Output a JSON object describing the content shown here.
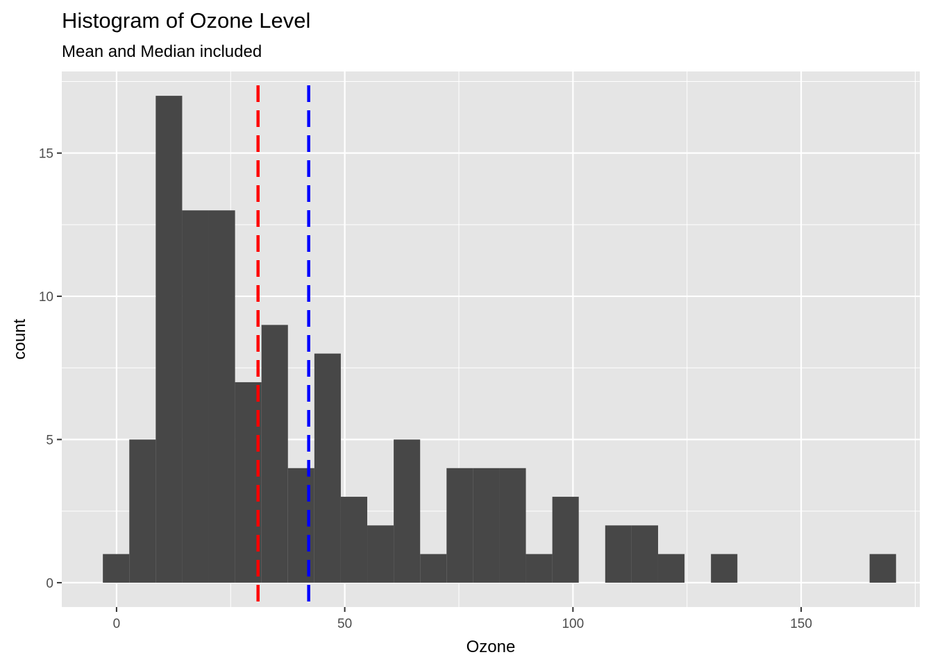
{
  "chart_data": {
    "type": "bar",
    "title": "Histogram of Ozone Level",
    "subtitle": "Mean and Median included",
    "xlabel": "Ozone",
    "ylabel": "count",
    "bin_width": 5.793,
    "bin_start": -3.0,
    "counts": [
      1,
      5,
      17,
      13,
      13,
      7,
      9,
      4,
      8,
      3,
      2,
      5,
      1,
      4,
      4,
      4,
      1,
      3,
      0,
      2,
      2,
      1,
      0,
      1,
      0,
      0,
      0,
      0,
      0,
      1
    ],
    "xlim": [
      -12,
      176
    ],
    "ylim": [
      -0.85,
      17.85
    ],
    "x_ticks": [
      0,
      50,
      100,
      150
    ],
    "x_tick_labels": [
      "0",
      "50",
      "100",
      "150"
    ],
    "y_ticks": [
      0,
      5,
      10,
      15
    ],
    "y_tick_labels": [
      "0",
      "5",
      "10",
      "15"
    ],
    "vlines": [
      {
        "value": 31,
        "color": "#ff0000",
        "style": "dashed"
      },
      {
        "value": 42.1,
        "color": "#0000ff",
        "style": "dashed"
      }
    ],
    "grid": true,
    "colors": {
      "panel": "#e5e5e5",
      "grid": "#ffffff",
      "bar": "#474747",
      "tick": "#333333"
    }
  }
}
